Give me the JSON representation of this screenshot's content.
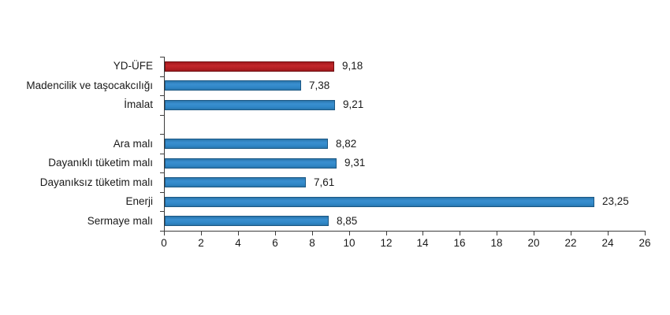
{
  "chart_data": {
    "type": "bar",
    "orientation": "horizontal",
    "title": "",
    "xlabel": "",
    "ylabel": "",
    "categories": [
      "YD-ÜFE",
      "Madencilik ve taşocakcılığı",
      "İmalat",
      "",
      "Ara malı",
      "Dayanıklı tüketim malı",
      "Dayanıksız tüketim malı",
      "Enerji",
      "Sermaye malı"
    ],
    "values": [
      9.18,
      7.38,
      9.21,
      null,
      8.82,
      9.31,
      7.61,
      23.25,
      8.85
    ],
    "value_labels": [
      "9,18",
      "7,38",
      "9,21",
      "",
      "8,82",
      "9,31",
      "7,61",
      "23,25",
      "8,85"
    ],
    "highlight_index": 0,
    "xlim": [
      0,
      26
    ],
    "x_ticks": [
      0,
      2,
      4,
      6,
      8,
      10,
      12,
      14,
      16,
      18,
      20,
      22,
      24,
      26
    ],
    "x_tick_labels": [
      "0",
      "2",
      "4",
      "6",
      "8",
      "10",
      "12",
      "14",
      "16",
      "18",
      "20",
      "22",
      "24",
      "26"
    ],
    "grid": false,
    "legend": false,
    "colors": {
      "highlight_bar_fill": "#b01d21",
      "highlight_bar_border": "#6f0f12",
      "bar_fill": "#2f86c6",
      "bar_border": "#1c5884",
      "axis": "#3c3c3c",
      "text": "#1a1a1a",
      "background": "#ffffff"
    }
  }
}
